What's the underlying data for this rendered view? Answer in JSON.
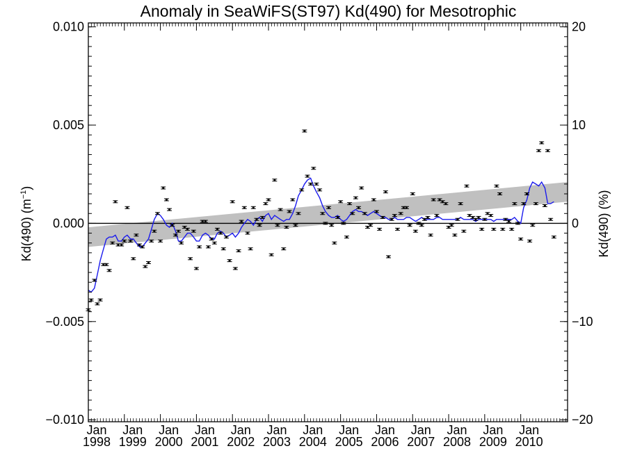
{
  "chart_data": {
    "type": "scatter",
    "title": "Anomaly in SeaWiFS(ST97) Kd(490) for Mesotrophic",
    "ylabel_left": "Kd(490) (m",
    "ylabel_left_sup": "−1",
    "ylabel_left_close": ")",
    "ylabel_right": "Kd(490) (%)",
    "xlim": [
      1998.0,
      2011.3
    ],
    "ylim": [
      -0.0101,
      0.0102
    ],
    "ylim_right": [
      -20.2,
      20.4
    ],
    "grid": false,
    "y_ticks": [
      {
        "value": -0.01,
        "label": "−0.010"
      },
      {
        "value": -0.005,
        "label": "−0.005"
      },
      {
        "value": 0.0,
        "label": "0.000"
      },
      {
        "value": 0.005,
        "label": "0.005"
      },
      {
        "value": 0.01,
        "label": "0.010"
      }
    ],
    "y_ticks_right": [
      {
        "value": -20,
        "label": "−20"
      },
      {
        "value": -10,
        "label": "−10"
      },
      {
        "value": 0,
        "label": "0"
      },
      {
        "value": 10,
        "label": "10"
      },
      {
        "value": 20,
        "label": "20"
      }
    ],
    "x_ticks": [
      {
        "value": 1998.0,
        "month": "Jan",
        "year": "1998"
      },
      {
        "value": 1999.0,
        "month": "Jan",
        "year": "1999"
      },
      {
        "value": 2000.0,
        "month": "Jan",
        "year": "2000"
      },
      {
        "value": 2001.0,
        "month": "Jan",
        "year": "2001"
      },
      {
        "value": 2002.0,
        "month": "Jan",
        "year": "2002"
      },
      {
        "value": 2003.0,
        "month": "Jan",
        "year": "2003"
      },
      {
        "value": 2004.0,
        "month": "Jan",
        "year": "2004"
      },
      {
        "value": 2005.0,
        "month": "Jan",
        "year": "2005"
      },
      {
        "value": 2006.0,
        "month": "Jan",
        "year": "2006"
      },
      {
        "value": 2007.0,
        "month": "Jan",
        "year": "2007"
      },
      {
        "value": 2008.0,
        "month": "Jan",
        "year": "2008"
      },
      {
        "value": 2009.0,
        "month": "Jan",
        "year": "2009"
      },
      {
        "value": 2010.0,
        "month": "Jan",
        "year": "2010"
      }
    ],
    "trend_band": {
      "x": [
        1998.0,
        2011.3
      ],
      "lower": [
        -0.0012,
        0.0011
      ],
      "upper": [
        -0.0002,
        0.0021
      ],
      "color": "#c0c0c0"
    },
    "zero_line": 0.0,
    "series": [
      {
        "kind": "points_with_error_bars",
        "color": "#000000",
        "x": [
          1998.0,
          1998.08,
          1998.17,
          1998.25,
          1998.33,
          1998.42,
          1998.5,
          1998.58,
          1998.67,
          1998.75,
          1998.83,
          1998.92,
          1999.0,
          1999.08,
          1999.17,
          1999.25,
          1999.33,
          1999.42,
          1999.5,
          1999.58,
          1999.67,
          1999.75,
          1999.83,
          1999.92,
          2000.0,
          2000.08,
          2000.17,
          2000.25,
          2000.33,
          2000.42,
          2000.5,
          2000.58,
          2000.67,
          2000.75,
          2000.83,
          2000.92,
          2001.0,
          2001.08,
          2001.17,
          2001.25,
          2001.33,
          2001.42,
          2001.5,
          2001.58,
          2001.67,
          2001.75,
          2001.83,
          2001.92,
          2002.0,
          2002.08,
          2002.17,
          2002.25,
          2002.33,
          2002.42,
          2002.5,
          2002.58,
          2002.67,
          2002.75,
          2002.83,
          2002.92,
          2003.0,
          2003.08,
          2003.17,
          2003.25,
          2003.33,
          2003.42,
          2003.5,
          2003.58,
          2003.67,
          2003.75,
          2003.83,
          2003.92,
          2004.0,
          2004.08,
          2004.17,
          2004.25,
          2004.33,
          2004.42,
          2004.5,
          2004.58,
          2004.67,
          2004.75,
          2004.83,
          2004.92,
          2005.0,
          2005.08,
          2005.17,
          2005.25,
          2005.33,
          2005.42,
          2005.5,
          2005.58,
          2005.67,
          2005.75,
          2005.83,
          2005.92,
          2006.0,
          2006.08,
          2006.17,
          2006.25,
          2006.33,
          2006.42,
          2006.5,
          2006.58,
          2006.67,
          2006.75,
          2006.83,
          2006.92,
          2007.0,
          2007.08,
          2007.17,
          2007.25,
          2007.33,
          2007.42,
          2007.5,
          2007.58,
          2007.67,
          2007.75,
          2007.83,
          2007.92,
          2008.0,
          2008.08,
          2008.17,
          2008.25,
          2008.33,
          2008.42,
          2008.5,
          2008.58,
          2008.67,
          2008.75,
          2008.83,
          2008.92,
          2009.0,
          2009.08,
          2009.17,
          2009.25,
          2009.33,
          2009.42,
          2009.5,
          2009.58,
          2009.67,
          2009.75,
          2009.83,
          2009.92,
          2010.0,
          2010.08,
          2010.17,
          2010.25,
          2010.33,
          2010.42,
          2010.5,
          2010.58,
          2010.67,
          2010.75,
          2010.83,
          2010.92
        ],
        "y": [
          -0.0044,
          -0.0039,
          -0.0029,
          -0.0041,
          -0.0039,
          -0.0021,
          -0.0021,
          -0.0024,
          -0.001,
          0.0011,
          -0.0011,
          -0.0011,
          -0.0009,
          0.0008,
          -0.0009,
          -0.0018,
          -0.0006,
          -0.0011,
          -0.0012,
          -0.0022,
          -0.002,
          -0.0009,
          -0.0004,
          0.0005,
          -0.0009,
          0.0018,
          0.0012,
          0.0007,
          -0.0001,
          -0.0006,
          -0.0004,
          -0.001,
          -0.0002,
          -0.0003,
          -0.0018,
          -0.0004,
          -0.0023,
          -0.0012,
          0.0001,
          0.0001,
          -0.0012,
          -0.0008,
          -0.001,
          -0.0003,
          -0.0005,
          -0.0013,
          -0.0007,
          -0.0019,
          0.0011,
          -0.0023,
          -0.0014,
          0.0001,
          0.0008,
          -0.0005,
          -0.0013,
          0.0008,
          0.0002,
          -0.0001,
          0.0003,
          0.001,
          0.0012,
          -0.0016,
          0.0022,
          -0.0001,
          0.0007,
          -0.0013,
          -0.0002,
          0.0006,
          0.0012,
          -0.0001,
          0.0005,
          0.0017,
          0.0047,
          0.0024,
          0.002,
          0.0028,
          0.002,
          0.0017,
          0.0005,
          0.0,
          0.0008,
          -0.0001,
          -0.001,
          0.0003,
          0.0011,
          0.0,
          -0.0007,
          0.001,
          0.0005,
          0.0013,
          0.0008,
          0.0018,
          0.0005,
          -0.0002,
          -0.0001,
          0.0012,
          0.0006,
          -0.0003,
          0.0003,
          0.0016,
          -0.0017,
          0.0002,
          0.0004,
          -0.0003,
          0.0005,
          0.0008,
          0.0008,
          -0.0001,
          0.0015,
          -0.0004,
          0.0,
          -0.0001,
          0.0002,
          0.0003,
          -0.0006,
          0.0012,
          0.0004,
          0.0012,
          0.0011,
          0.001,
          -0.0002,
          -0.0001,
          -0.0006,
          0.0002,
          0.001,
          -0.0004,
          0.0019,
          0.0004,
          0.0003,
          0.0002,
          0.0003,
          -0.0003,
          0.0002,
          0.0005,
          0.0004,
          -0.0003,
          0.0019,
          0.0015,
          -0.0003,
          0.0002,
          0.0001,
          -0.0003,
          0.001,
          0.0,
          -0.0008,
          0.001,
          0.0015,
          -0.0009,
          -0.0001,
          0.001,
          0.0037,
          0.0041,
          0.0009,
          0.0037,
          0.0002,
          -0.0007
        ]
      },
      {
        "kind": "line",
        "color": "#1a1aee",
        "x": [
          1998.0,
          1998.08,
          1998.17,
          1998.25,
          1998.33,
          1998.42,
          1998.5,
          1998.58,
          1998.67,
          1998.75,
          1998.83,
          1998.92,
          1999.0,
          1999.08,
          1999.17,
          1999.25,
          1999.33,
          1999.42,
          1999.5,
          1999.58,
          1999.67,
          1999.75,
          1999.83,
          1999.92,
          2000.0,
          2000.08,
          2000.17,
          2000.25,
          2000.33,
          2000.42,
          2000.5,
          2000.58,
          2000.67,
          2000.75,
          2000.83,
          2000.92,
          2001.0,
          2001.08,
          2001.17,
          2001.25,
          2001.33,
          2001.42,
          2001.5,
          2001.58,
          2001.67,
          2001.75,
          2001.83,
          2001.92,
          2002.0,
          2002.08,
          2002.17,
          2002.25,
          2002.33,
          2002.42,
          2002.5,
          2002.58,
          2002.67,
          2002.75,
          2002.83,
          2002.92,
          2003.0,
          2003.08,
          2003.17,
          2003.25,
          2003.33,
          2003.42,
          2003.5,
          2003.58,
          2003.67,
          2003.75,
          2003.83,
          2003.92,
          2004.0,
          2004.08,
          2004.17,
          2004.25,
          2004.33,
          2004.42,
          2004.5,
          2004.58,
          2004.67,
          2004.75,
          2004.83,
          2004.92,
          2005.0,
          2005.08,
          2005.17,
          2005.25,
          2005.33,
          2005.42,
          2005.5,
          2005.58,
          2005.67,
          2005.75,
          2005.83,
          2005.92,
          2006.0,
          2006.08,
          2006.17,
          2006.25,
          2006.33,
          2006.42,
          2006.5,
          2006.58,
          2006.67,
          2006.75,
          2006.83,
          2006.92,
          2007.0,
          2007.08,
          2007.17,
          2007.25,
          2007.33,
          2007.42,
          2007.5,
          2007.58,
          2007.67,
          2007.75,
          2007.83,
          2007.92,
          2008.0,
          2008.08,
          2008.17,
          2008.25,
          2008.33,
          2008.42,
          2008.5,
          2008.58,
          2008.67,
          2008.75,
          2008.83,
          2008.92,
          2009.0,
          2009.08,
          2009.17,
          2009.25,
          2009.33,
          2009.42,
          2009.5,
          2009.58,
          2009.67,
          2009.75,
          2009.83,
          2009.92,
          2010.0,
          2010.08,
          2010.17,
          2010.25,
          2010.33,
          2010.42,
          2010.5,
          2010.58,
          2010.67,
          2010.75,
          2010.83,
          2010.92
        ],
        "y": [
          -0.0034,
          -0.0035,
          -0.0033,
          -0.0026,
          -0.0019,
          -0.0013,
          -0.0008,
          -0.0007,
          -0.0007,
          -0.0006,
          -0.0009,
          -0.0009,
          -0.0007,
          -0.0006,
          -0.0008,
          -0.0008,
          -0.001,
          -0.0012,
          -0.0012,
          -0.001,
          -0.0008,
          -0.0003,
          0.0002,
          0.0005,
          0.0004,
          0.0002,
          -0.0001,
          -0.0002,
          0.0,
          -0.0004,
          -0.0009,
          -0.0009,
          -0.0007,
          -0.0005,
          -0.0005,
          -0.0007,
          -0.0009,
          -0.0009,
          -0.0006,
          -0.0005,
          -0.0006,
          -0.0008,
          -0.0008,
          -0.0005,
          -0.0004,
          -0.0005,
          -0.0007,
          -0.0006,
          -0.0005,
          -0.0007,
          -0.0005,
          -0.0002,
          0.0,
          0.0002,
          0.0001,
          -0.0001,
          0.0002,
          0.0003,
          0.0001,
          0.0004,
          0.0005,
          0.0002,
          0.0004,
          0.0003,
          0.0002,
          0.0001,
          0.0002,
          0.0002,
          0.0005,
          0.0009,
          0.0014,
          0.0017,
          0.002,
          0.0022,
          0.0023,
          0.0019,
          0.0016,
          0.0013,
          0.0009,
          0.0006,
          0.0004,
          0.0003,
          0.0003,
          0.0004,
          0.0002,
          0.0001,
          0.0002,
          0.0004,
          0.0006,
          0.0007,
          0.0006,
          0.0006,
          0.0005,
          0.0004,
          0.0005,
          0.0006,
          0.0005,
          0.0004,
          0.0003,
          0.0003,
          0.0002,
          0.0002,
          0.0003,
          0.0002,
          0.0002,
          0.0002,
          0.0003,
          0.0003,
          0.0002,
          0.0001,
          0.0002,
          0.0003,
          0.0002,
          0.0002,
          0.0002,
          0.0002,
          0.0003,
          0.0003,
          0.0002,
          0.0002,
          0.0002,
          0.0002,
          0.0002,
          0.0002,
          0.0003,
          0.0002,
          0.0002,
          0.0002,
          0.0002,
          0.0001,
          0.0002,
          0.0002,
          0.0002,
          0.0002,
          0.0002,
          0.0001,
          0.0002,
          0.0002,
          0.0002,
          0.0002,
          0.0002,
          0.0002,
          0.0003,
          0.0001,
          0.0,
          0.0008,
          0.0012,
          0.0018,
          0.0021,
          0.002,
          0.0019,
          0.0021,
          0.0018,
          0.001,
          0.001,
          0.0011
        ]
      }
    ]
  }
}
